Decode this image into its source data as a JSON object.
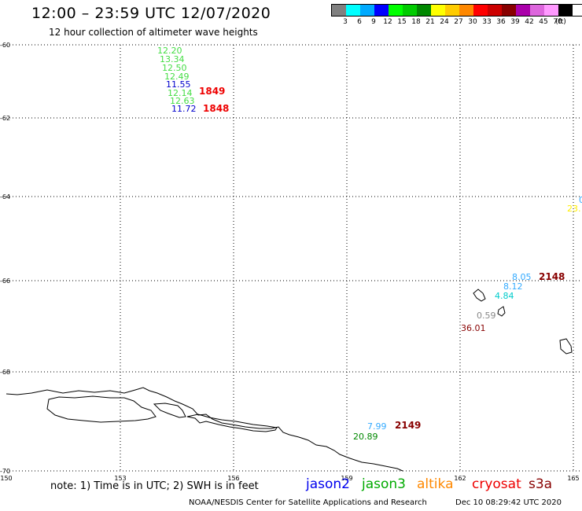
{
  "header": {
    "title": "12:00 – 23:59 UTC 12/07/2020",
    "subtitle": "12 hour collection of altimeter wave heights"
  },
  "scale": {
    "colors": [
      "#808080",
      "#00ffff",
      "#00aaff",
      "#0000ff",
      "#00ff00",
      "#00cc00",
      "#008800",
      "#ffff00",
      "#ffcc00",
      "#ff8800",
      "#ff0000",
      "#cc0000",
      "#880000",
      "#aa00aa",
      "#dd66dd",
      "#ff99ff",
      "#000000"
    ],
    "labels": [
      "3",
      "6",
      "9",
      "12",
      "15",
      "18",
      "21",
      "24",
      "27",
      "30",
      "33",
      "36",
      "39",
      "42",
      "45",
      "70",
      "(ft)"
    ]
  },
  "axes": {
    "lat_labels": [
      "-60",
      "-62",
      "-64",
      "-66",
      "-68",
      "-70"
    ],
    "lon_labels": [
      "150",
      "153",
      "156",
      "159",
      "162",
      "165"
    ]
  },
  "observations": [
    {
      "text": "12.20",
      "color": "#44dd44"
    },
    {
      "text": "13.34",
      "color": "#44dd44"
    },
    {
      "text": "12.50",
      "color": "#44dd44"
    },
    {
      "text": "12.49",
      "color": "#44dd44"
    },
    {
      "text": "11.55",
      "color": "#0000cc"
    },
    {
      "text": "12.14",
      "color": "#44dd44"
    },
    {
      "text": "12.63",
      "color": "#44dd44"
    },
    {
      "text": "11.72",
      "color": "#0000cc"
    },
    {
      "text": "0",
      "color": "#33aaff"
    },
    {
      "text": "23.",
      "color": "#ffee00"
    },
    {
      "text": "8.05",
      "color": "#33aaff"
    },
    {
      "text": "8.12",
      "color": "#33aaff"
    },
    {
      "text": "4.84",
      "color": "#00cccc"
    },
    {
      "text": "0.59",
      "color": "#888888"
    },
    {
      "text": "36.01",
      "color": "#880000"
    },
    {
      "text": "7.99",
      "color": "#33aaff"
    },
    {
      "text": "20.89",
      "color": "#008800"
    }
  ],
  "passes": [
    {
      "text": "1849",
      "color": "#ee0000"
    },
    {
      "text": "1848",
      "color": "#ee0000"
    },
    {
      "text": "2148",
      "color": "#880000"
    },
    {
      "text": "2149",
      "color": "#880000"
    }
  ],
  "footer": {
    "note": "note: 1) Time is in UTC; 2) SWH is in feet",
    "legend": [
      {
        "text": "jason2",
        "color": "#0000ee"
      },
      {
        "text": "jason3",
        "color": "#00aa00"
      },
      {
        "text": "altika",
        "color": "#ff8800"
      },
      {
        "text": "cryosat",
        "color": "#ee0000"
      },
      {
        "text": "s3a",
        "color": "#880000"
      }
    ],
    "credit": "NOAA/NESDIS Center for Satellite Applications and Research",
    "timestamp": "Dec 10 08:29:42 UTC 2020"
  }
}
